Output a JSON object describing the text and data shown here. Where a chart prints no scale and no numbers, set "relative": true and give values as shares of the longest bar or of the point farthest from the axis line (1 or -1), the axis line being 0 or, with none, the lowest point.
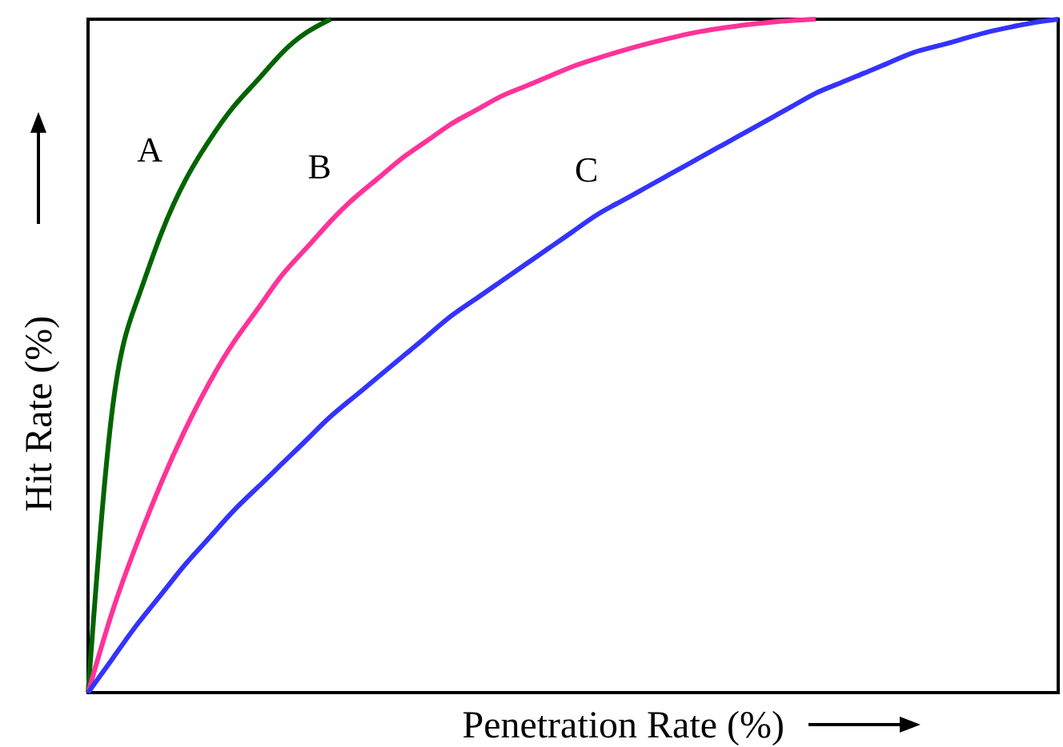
{
  "chart_data": {
    "type": "line",
    "relative": true,
    "xlabel": "Penetration Rate (%)",
    "ylabel": "Hit Rate (%)",
    "categories": [
      null,
      null,
      null,
      null,
      null,
      null,
      null,
      null,
      null,
      null,
      null,
      null,
      null,
      null,
      null,
      null,
      null,
      null,
      null,
      null,
      null,
      null,
      null,
      null,
      null,
      null,
      null,
      null,
      null,
      null,
      null,
      null,
      null,
      null,
      null,
      null,
      null,
      null,
      null,
      null,
      null
    ],
    "series": [
      {
        "name": "A",
        "color": "#006400",
        "values": [
          0,
          0.42,
          0.58,
          0.68,
          0.76,
          0.82,
          0.87,
          0.91,
          0.95,
          0.98,
          1.0,
          null,
          null,
          null,
          null,
          null,
          null,
          null,
          null,
          null,
          null,
          null,
          null,
          null,
          null,
          null,
          null,
          null,
          null,
          null,
          null,
          null,
          null,
          null,
          null,
          null,
          null,
          null,
          null,
          null,
          null
        ]
      },
      {
        "name": "B",
        "color": "#ff3399",
        "values": [
          0,
          0.12,
          0.22,
          0.31,
          0.39,
          0.46,
          0.52,
          0.57,
          0.62,
          0.66,
          0.7,
          0.735,
          0.765,
          0.795,
          0.82,
          0.845,
          0.865,
          0.885,
          0.9,
          0.915,
          0.93,
          0.942,
          0.953,
          0.963,
          0.972,
          0.98,
          0.986,
          0.991,
          0.995,
          0.998,
          1.0,
          null,
          null,
          null,
          null,
          null,
          null,
          null,
          null,
          null,
          null
        ]
      },
      {
        "name": "C",
        "color": "#3333ff",
        "values": [
          0,
          0.05,
          0.1,
          0.145,
          0.19,
          0.23,
          0.27,
          0.305,
          0.34,
          0.375,
          0.41,
          0.44,
          0.47,
          0.5,
          0.53,
          0.56,
          0.585,
          0.61,
          0.635,
          0.66,
          0.685,
          0.71,
          0.73,
          0.75,
          0.77,
          0.79,
          0.81,
          0.83,
          0.85,
          0.87,
          0.89,
          0.905,
          0.92,
          0.935,
          0.95,
          0.96,
          0.97,
          0.98,
          0.988,
          0.995,
          1.0
        ]
      }
    ],
    "marker": "none",
    "line_style": "solid"
  }
}
